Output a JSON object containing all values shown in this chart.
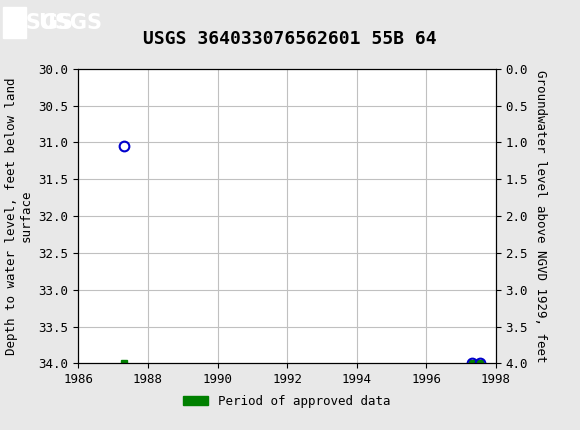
{
  "title": "USGS 364033076562601 55B 64",
  "ylabel_left": "Depth to water level, feet below land\nsurface",
  "ylabel_right": "Groundwater level above NGVD 1929, feet",
  "xlim": [
    1986,
    1998
  ],
  "ylim_left": [
    30.0,
    34.0
  ],
  "ylim_right": [
    0.0,
    4.0
  ],
  "xticks": [
    1986,
    1988,
    1990,
    1992,
    1994,
    1996,
    1998
  ],
  "yticks_left": [
    30.0,
    30.5,
    31.0,
    31.5,
    32.0,
    32.5,
    33.0,
    33.5,
    34.0
  ],
  "yticks_right": [
    0.0,
    0.5,
    1.0,
    1.5,
    2.0,
    2.5,
    3.0,
    3.5,
    4.0
  ],
  "open_circle_points": [
    [
      1987.3,
      31.05
    ]
  ],
  "open_circle_color": "#0000cc",
  "approved_square_points": [
    [
      1987.3,
      34.0
    ]
  ],
  "approved_cluster_points": [
    [
      1997.3,
      34.0
    ],
    [
      1997.55,
      34.0
    ]
  ],
  "approved_color": "#008000",
  "header_bg_color": "#006633",
  "header_text_color": "#ffffff",
  "background_color": "#e8e8e8",
  "plot_bg_color": "#ffffff",
  "grid_color": "#c0c0c0",
  "title_fontsize": 13,
  "axis_label_fontsize": 9,
  "tick_fontsize": 9,
  "legend_fontsize": 9
}
